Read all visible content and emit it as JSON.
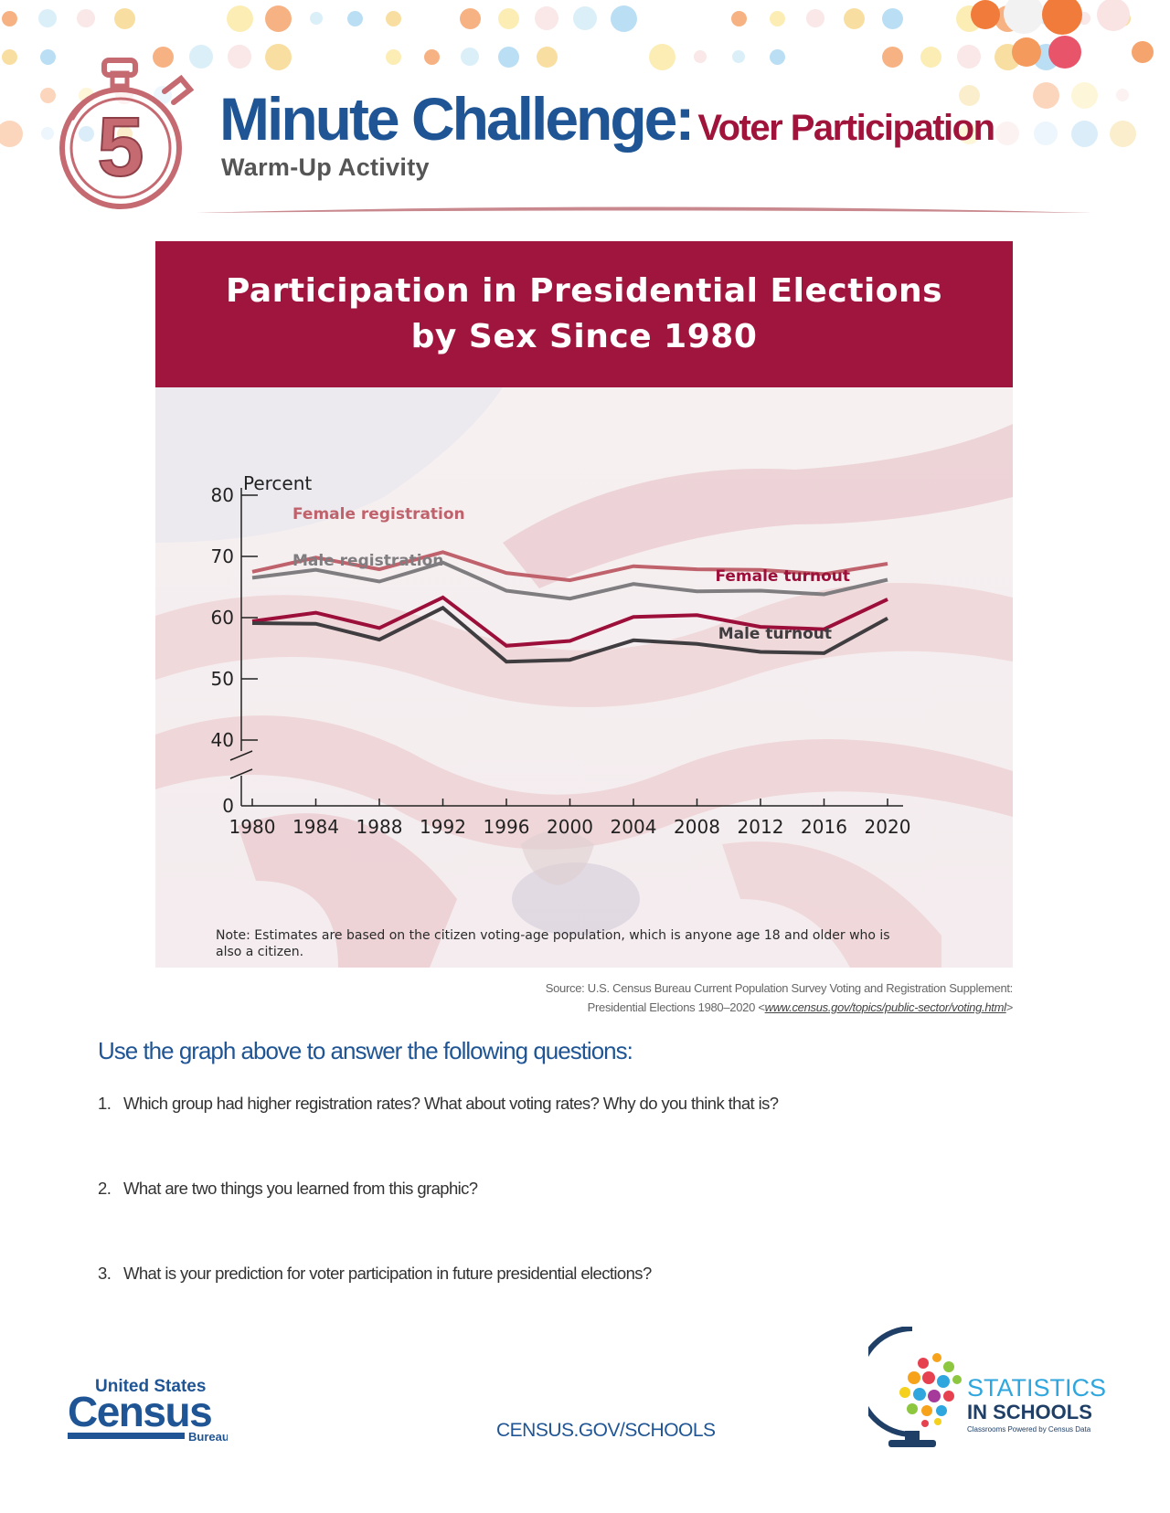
{
  "header": {
    "title_main": "Minute Challenge:",
    "title_sub": "Voter Participation",
    "subtitle": "Warm-Up Activity",
    "stopwatch_number": "5"
  },
  "chart_title": {
    "line1": "Participation in Presidential Elections",
    "line2": "by Sex Since 1980"
  },
  "chart_data": {
    "type": "line",
    "title": "Participation in Presidential Elections by Sex Since 1980",
    "ylabel": "Percent",
    "xlabel": "",
    "x": [
      1980,
      1984,
      1988,
      1992,
      1996,
      2000,
      2004,
      2008,
      2012,
      2016,
      2020
    ],
    "yticks": [
      0,
      40,
      50,
      60,
      70,
      80
    ],
    "ylim": [
      0,
      80
    ],
    "axis_break": "between 0 and 40",
    "grid": false,
    "series": [
      {
        "name": "Female registration",
        "color": "#c0626c",
        "width": 4,
        "values": [
          67.5,
          69.8,
          67.9,
          70.7,
          67.3,
          66.1,
          68.4,
          67.9,
          67.8,
          67.1,
          68.8
        ]
      },
      {
        "name": "Male registration",
        "color": "#7f7d7f",
        "width": 4,
        "values": [
          66.5,
          67.8,
          65.9,
          69.0,
          64.4,
          63.1,
          65.5,
          64.3,
          64.4,
          63.8,
          66.2
        ]
      },
      {
        "name": "Female turnout",
        "color": "#9c0f3a",
        "width": 4,
        "values": [
          59.4,
          60.8,
          58.3,
          63.3,
          55.4,
          56.2,
          60.1,
          60.4,
          58.5,
          58.1,
          63.0
        ]
      },
      {
        "name": "Male turnout",
        "color": "#3f3d40",
        "width": 4,
        "values": [
          59.1,
          59.0,
          56.4,
          61.6,
          52.8,
          53.1,
          56.3,
          55.7,
          54.4,
          54.2,
          59.9
        ]
      }
    ],
    "note": "Note: Estimates are based on the citizen voting-age population, which is anyone age 18 and older who is also a citizen."
  },
  "source": {
    "line1": "Source: U.S. Census Bureau Current Population Survey Voting and Registration Supplement:",
    "line2_prefix": "Presidential Elections 1980–2020 <",
    "link": "www.census.gov/topics/public-sector/voting.html",
    "line2_suffix": ">"
  },
  "questions": {
    "title": "Use the graph above to answer the following questions:",
    "items": [
      {
        "num": "1.",
        "text": "Which group had higher registration rates?  What about voting rates?  Why do you think that is?"
      },
      {
        "num": "2.",
        "text": "What are two things you learned from this graphic?"
      },
      {
        "num": "3.",
        "text": "What is your prediction for voter participation in future presidential elections?"
      }
    ]
  },
  "footer": {
    "census_logo_top": "United States",
    "census_logo_main": "Census",
    "census_logo_bottom": "Bureau",
    "link": "CENSUS.GOV/SCHOOLS",
    "sis_line1": "STATISTICS",
    "sis_line2": "IN SCHOOLS",
    "sis_tagline": "Classrooms Powered by Census Data"
  },
  "colors": {
    "brand_blue": "#1f5594",
    "brand_crimson": "#a0143c",
    "chart_header_bg": "#a0153e",
    "stopwatch": "#c66a72"
  }
}
